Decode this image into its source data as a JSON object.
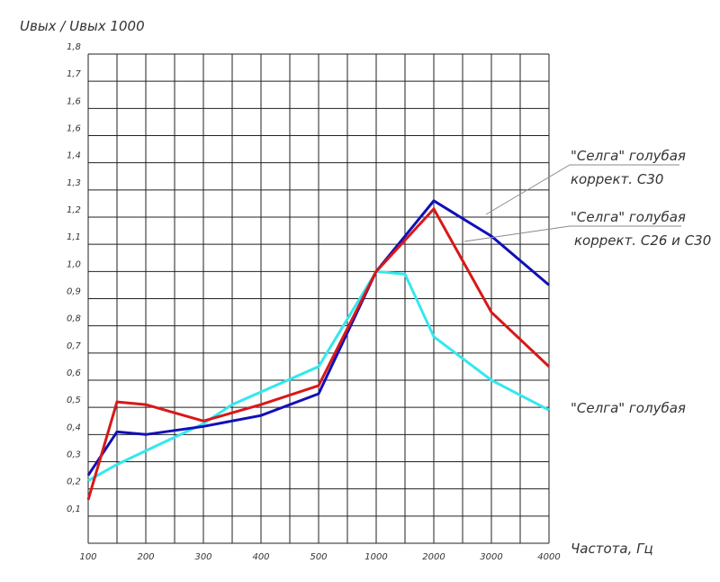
{
  "chart_data": {
    "type": "line",
    "ylabel": "Uвых / Uвых 1000",
    "xlabel": "Частота, Гц",
    "categories": [
      "100",
      "",
      "200",
      "",
      "300",
      "",
      "400",
      "",
      "500",
      "",
      "1000",
      "",
      "2000",
      "",
      "3000",
      "",
      "4000"
    ],
    "ylim": [
      0,
      1.8
    ],
    "yticks": [
      "0,1",
      "0,2",
      "0,3",
      "0,4",
      "0,5",
      "0,6",
      "0,7",
      "0,8",
      "0,9",
      "1,0",
      "1,1",
      "1,2",
      "1,3",
      "1,4",
      "1,6",
      "1,6",
      "1,7",
      "1,8"
    ],
    "grid": true,
    "series": [
      {
        "name_lines": [
          "\"Селга\" голубая",
          "коррект. С30"
        ],
        "color": "#1010b8",
        "points": [
          [
            0,
            0.25
          ],
          [
            1,
            0.41
          ],
          [
            2,
            0.4
          ],
          [
            4,
            0.43
          ],
          [
            6,
            0.47
          ],
          [
            8,
            0.55
          ],
          [
            10,
            1.0
          ],
          [
            12,
            1.26
          ],
          [
            14,
            1.13
          ],
          [
            16,
            0.95
          ]
        ]
      },
      {
        "name_lines": [
          "\"Селга\" голубая",
          "коррект. С26 и С30"
        ],
        "color": "#d81818",
        "points": [
          [
            0,
            0.16
          ],
          [
            1,
            0.52
          ],
          [
            2,
            0.51
          ],
          [
            4,
            0.45
          ],
          [
            6,
            0.51
          ],
          [
            8,
            0.58
          ],
          [
            10,
            1.0
          ],
          [
            12,
            1.23
          ],
          [
            14,
            0.85
          ],
          [
            16,
            0.65
          ]
        ]
      },
      {
        "name_lines": [
          "\"Селга\" голубая"
        ],
        "color": "#33e8ee",
        "points": [
          [
            0,
            0.23
          ],
          [
            1,
            0.29
          ],
          [
            2,
            0.34
          ],
          [
            4,
            0.44
          ],
          [
            5,
            0.51
          ],
          [
            8,
            0.65
          ],
          [
            10,
            1.0
          ],
          [
            11,
            0.99
          ],
          [
            12,
            0.76
          ],
          [
            14,
            0.6
          ],
          [
            16,
            0.49
          ]
        ]
      }
    ]
  }
}
